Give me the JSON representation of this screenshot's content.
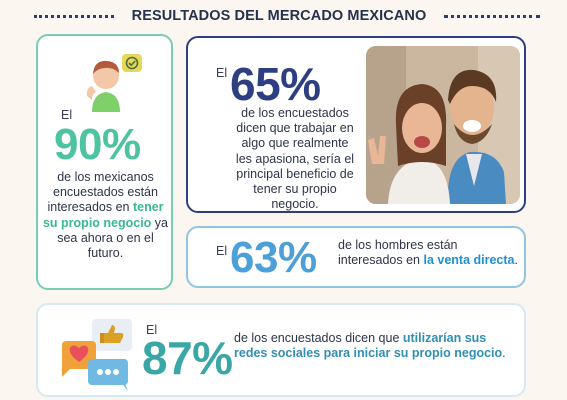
{
  "header": {
    "title": "RESULTADOS DEL MERCADO MEXICANO"
  },
  "card_90": {
    "prefix": "El",
    "percent": "90%",
    "text_1": "de los mexicanos encuestados están interesados en ",
    "highlight": "tener su propio negocio",
    "text_2": " ya sea ahora o en el futuro."
  },
  "card_65": {
    "prefix": "El",
    "percent": "65%",
    "text": "de los encuestados dicen que trabajar en algo que realmente les apasiona, sería el principal beneficio de tener su propio negocio."
  },
  "card_63": {
    "prefix": "El",
    "percent": "63%",
    "text_1": "de los hombres están interesados en ",
    "highlight": "la venta directa",
    "text_2": "."
  },
  "card_87": {
    "prefix": "El",
    "percent": "87%",
    "text_1": "de los encuestados dicen que ",
    "highlight": "utilizarían sus redes sociales para iniciar su propio negocio",
    "text_2": "."
  },
  "colors": {
    "green_accent": "#4ec3a1",
    "navy_accent": "#2d3f82",
    "blue_accent": "#4c9fd7",
    "teal_accent": "#3aa7a6"
  },
  "icons": [
    "avatar-check-icon",
    "couple-photo",
    "social-media-icon"
  ]
}
